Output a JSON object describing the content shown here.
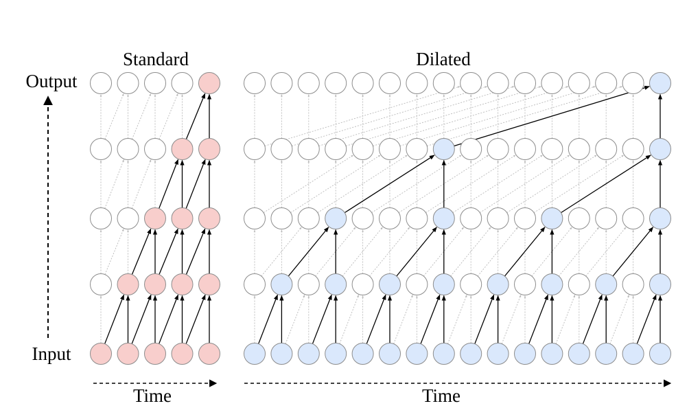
{
  "labels": {
    "standard_title": "Standard",
    "dilated_title": "Dilated",
    "output": "Output",
    "input": "Input",
    "time_standard": "Time",
    "time_dilated": "Time"
  },
  "colors": {
    "standard_active": "#f8cecc",
    "dilated_active": "#dae8fc",
    "inactive": "#ffffff",
    "node_stroke": "#8c8c8c",
    "active_edge": "#000000",
    "inactive_edge": "#b8b8b8"
  },
  "standard": {
    "columns": 5,
    "layers": 5,
    "kernel": 2,
    "output_index": 4
  },
  "dilated": {
    "columns": 16,
    "layers": 5,
    "kernel": 2,
    "dilations": [
      1,
      2,
      4,
      8
    ],
    "output_index": 15
  }
}
